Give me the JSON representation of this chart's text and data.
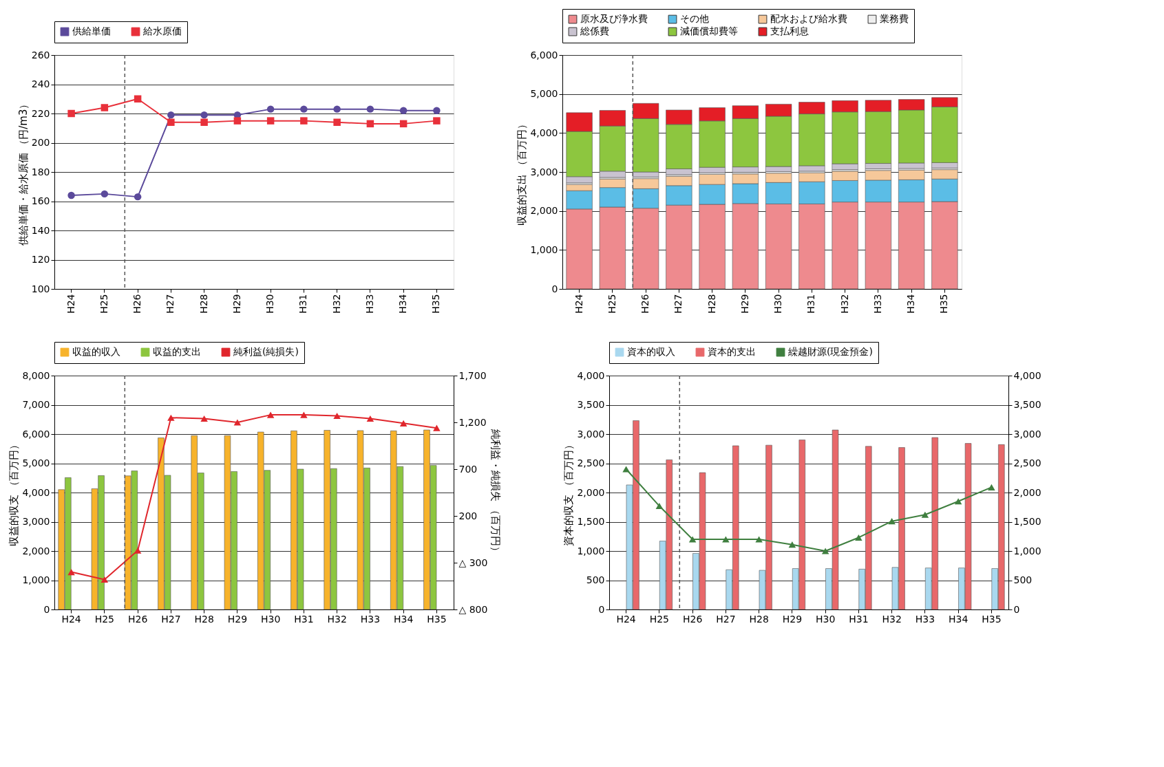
{
  "chart_data": [
    {
      "type": "line",
      "categories": [
        "H24",
        "H25",
        "H26",
        "H27",
        "H28",
        "H29",
        "H30",
        "H31",
        "H32",
        "H33",
        "H34",
        "H35"
      ],
      "ylabel": "供給単価・給水原価 （円/m3）",
      "ylim": [
        100,
        260
      ],
      "yticks": [
        100,
        120,
        140,
        160,
        180,
        200,
        220,
        240,
        260
      ],
      "grid": "y",
      "legend": "top",
      "series": [
        {
          "name": "供給単価",
          "color": "#5b4a9b",
          "marker": "circle",
          "values": [
            164,
            165,
            163,
            219,
            219,
            219,
            223,
            223,
            223,
            223,
            222,
            222
          ]
        },
        {
          "name": "給水原価",
          "color": "#e8303a",
          "marker": "square",
          "values": [
            220,
            224,
            230,
            214,
            214,
            215,
            215,
            215,
            214,
            213,
            213,
            215
          ]
        }
      ],
      "ref_lines": [
        {
          "axis": "x",
          "value": "H26",
          "line_style": "dashed",
          "color": "#555555"
        }
      ]
    },
    {
      "type": "bar",
      "stacked": true,
      "categories": [
        "H24",
        "H25",
        "H26",
        "H27",
        "H28",
        "H29",
        "H30",
        "H31",
        "H32",
        "H33",
        "H34",
        "H35"
      ],
      "ylabel": "収益的支出 （百万円）",
      "ylim": [
        0,
        6000
      ],
      "yticks": [
        0,
        {
          "value": 1000,
          "label": "1,000"
        },
        {
          "value": 2000,
          "label": "2,000"
        },
        {
          "value": 3000,
          "label": "3,000"
        },
        {
          "value": 4000,
          "label": "4,000"
        },
        {
          "value": 5000,
          "label": "5,000"
        },
        {
          "value": 6000,
          "label": "6,000"
        }
      ],
      "grid": "y",
      "legend": "top",
      "series": [
        {
          "name": "原水及び浄水費",
          "color": "#ee8a8e",
          "values": [
            2050,
            2100,
            2070,
            2150,
            2170,
            2190,
            2180,
            2180,
            2230,
            2230,
            2230,
            2240
          ]
        },
        {
          "name": "その他",
          "color": "#5bbde6",
          "values": [
            470,
            500,
            500,
            500,
            510,
            510,
            550,
            570,
            550,
            560,
            570,
            580
          ]
        },
        {
          "name": "配水および給水費",
          "color": "#f6c89a",
          "values": [
            160,
            220,
            260,
            240,
            260,
            250,
            240,
            230,
            240,
            250,
            250,
            240
          ]
        },
        {
          "name": "業務費",
          "color": "#eeeeee",
          "values": [
            40,
            40,
            40,
            40,
            40,
            40,
            40,
            40,
            40,
            40,
            40,
            40
          ]
        },
        {
          "name": "総係費",
          "color": "#c9c3d0",
          "values": [
            160,
            160,
            130,
            150,
            140,
            140,
            130,
            140,
            150,
            140,
            140,
            140
          ]
        },
        {
          "name": "減価償却費等",
          "color": "#8dc63f",
          "values": [
            1160,
            1160,
            1370,
            1140,
            1190,
            1240,
            1290,
            1330,
            1330,
            1330,
            1360,
            1430
          ]
        },
        {
          "name": "支払利息",
          "color": "#e41e26",
          "values": [
            480,
            400,
            390,
            370,
            340,
            330,
            310,
            300,
            290,
            290,
            270,
            240
          ]
        }
      ],
      "ref_lines": [
        {
          "axis": "x",
          "value": "H26",
          "line_style": "dashed",
          "color": "#555555"
        }
      ]
    },
    {
      "type": "bar",
      "categories": [
        "H24",
        "H25",
        "H26",
        "H27",
        "H28",
        "H29",
        "H30",
        "H31",
        "H32",
        "H33",
        "H34",
        "H35"
      ],
      "ylabel": "収益的収支 （百万円）",
      "y2label": "純利益・純損失 （百万円）",
      "ylim": [
        0,
        8000
      ],
      "yticks": [
        0,
        {
          "value": 1000,
          "label": "1,000"
        },
        {
          "value": 2000,
          "label": "2,000"
        },
        {
          "value": 3000,
          "label": "3,000"
        },
        {
          "value": 4000,
          "label": "4,000"
        },
        {
          "value": 5000,
          "label": "5,000"
        },
        {
          "value": 6000,
          "label": "6,000"
        },
        {
          "value": 7000,
          "label": "7,000"
        },
        {
          "value": 8000,
          "label": "8,000"
        }
      ],
      "y2lim": [
        -800,
        1700
      ],
      "y2ticks": [
        {
          "value": -800,
          "label": "△ 800"
        },
        {
          "value": -300,
          "label": "△ 300"
        },
        200,
        700,
        {
          "value": 1200,
          "label": "1,200"
        },
        {
          "value": 1700,
          "label": "1,700"
        }
      ],
      "grid": "y",
      "legend": "top",
      "series": [
        {
          "name": "収益的収入",
          "color": "#f7b32b",
          "values": [
            4100,
            4130,
            4570,
            5870,
            5950,
            5950,
            6070,
            6110,
            6130,
            6120,
            6110,
            6140
          ]
        },
        {
          "name": "収益的支出",
          "color": "#8dc63f",
          "values": [
            4510,
            4580,
            4740,
            4590,
            4670,
            4720,
            4760,
            4800,
            4820,
            4840,
            4890,
            4930
          ]
        },
        {
          "name": "純利益(純損失)",
          "type": "line",
          "axis": "y2",
          "marker": "triangle",
          "color": "#e0262c",
          "values": [
            -400,
            -480,
            -170,
            1250,
            1240,
            1200,
            1280,
            1280,
            1270,
            1240,
            1190,
            1140
          ]
        }
      ],
      "ref_lines": [
        {
          "axis": "x",
          "value": "H26",
          "line_style": "dashed",
          "color": "#555555"
        }
      ]
    },
    {
      "type": "bar",
      "categories": [
        "H24",
        "H25",
        "H26",
        "H27",
        "H28",
        "H29",
        "H30",
        "H31",
        "H32",
        "H33",
        "H34",
        "H35"
      ],
      "ylabel": "資本的収支 （百万円）",
      "ylim": [
        0,
        4000
      ],
      "yticks": [
        0,
        500,
        {
          "value": 1000,
          "label": "1,000"
        },
        {
          "value": 1500,
          "label": "1,500"
        },
        {
          "value": 2000,
          "label": "2,000"
        },
        {
          "value": 2500,
          "label": "2,500"
        },
        {
          "value": 3000,
          "label": "3,000"
        },
        {
          "value": 3500,
          "label": "3,500"
        },
        {
          "value": 4000,
          "label": "4,000"
        }
      ],
      "y2lim": [
        0,
        4000
      ],
      "y2ticks": [
        0,
        500,
        {
          "value": 1000,
          "label": "1,000"
        },
        {
          "value": 1500,
          "label": "1,500"
        },
        {
          "value": 2000,
          "label": "2,000"
        },
        {
          "value": 2500,
          "label": "2,500"
        },
        {
          "value": 3000,
          "label": "3,000"
        },
        {
          "value": 3500,
          "label": "3,500"
        },
        {
          "value": 4000,
          "label": "4,000"
        }
      ],
      "grid": "y",
      "legend": "top",
      "series": [
        {
          "name": "資本的収入",
          "color": "#a9d8ef",
          "values": [
            2130,
            1170,
            960,
            680,
            670,
            700,
            700,
            690,
            720,
            710,
            710,
            700
          ]
        },
        {
          "name": "資本的支出",
          "color": "#e8686a",
          "values": [
            3230,
            2560,
            2340,
            2800,
            2810,
            2900,
            3070,
            2790,
            2770,
            2940,
            2840,
            2820
          ]
        },
        {
          "name": "繰越財源(現金預金)",
          "type": "line",
          "axis": "y2",
          "marker": "triangle",
          "color": "#3f7f3f",
          "values": [
            2400,
            1770,
            1200,
            1200,
            1200,
            1110,
            1000,
            1230,
            1510,
            1620,
            1850,
            2090
          ]
        }
      ],
      "ref_lines": [
        {
          "axis": "x",
          "value": "H26",
          "line_style": "dashed",
          "color": "#555555"
        }
      ]
    }
  ]
}
